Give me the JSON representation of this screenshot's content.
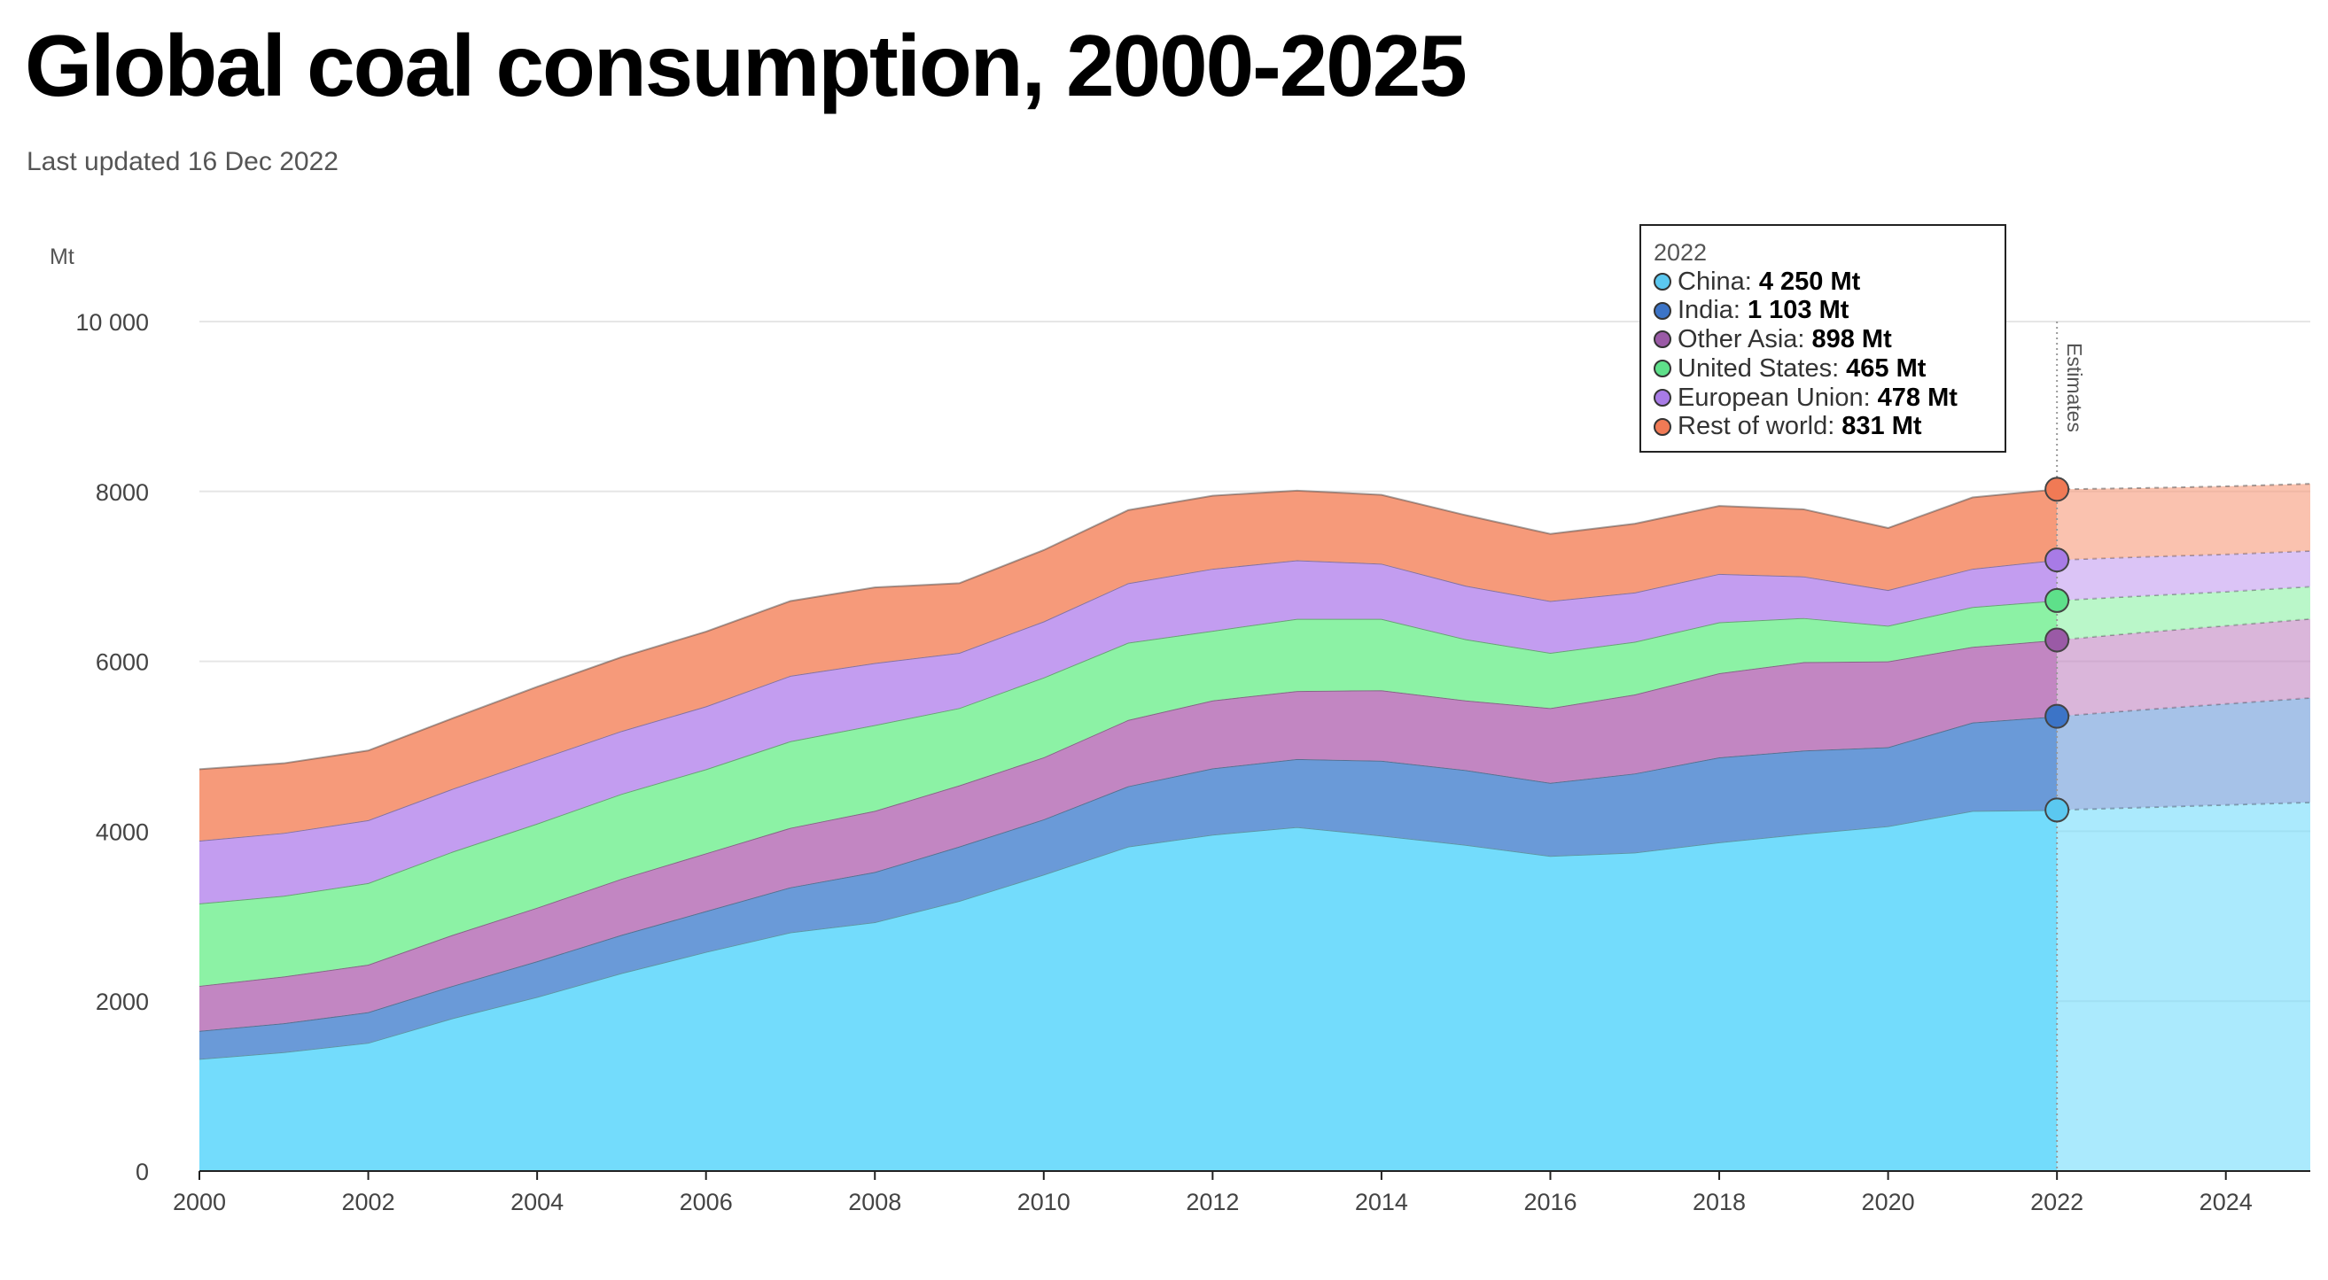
{
  "header": {
    "title": "Global coal consumption, 2000-2025",
    "subtitle": "Last updated 16 Dec 2022"
  },
  "tooltip": {
    "year": "2022",
    "rows": [
      {
        "label": "China:",
        "value": "4 250 Mt",
        "color": "#5bc8f0"
      },
      {
        "label": "India:",
        "value": "1 103 Mt",
        "color": "#3c74c7"
      },
      {
        "label": "Other Asia:",
        "value": "898 Mt",
        "color": "#9a5aa6"
      },
      {
        "label": "United States:",
        "value": "465 Mt",
        "color": "#5ee08a"
      },
      {
        "label": "European Union:",
        "value": "478 Mt",
        "color": "#a87be6"
      },
      {
        "label": "Rest of world:",
        "value": "831 Mt",
        "color": "#f07a55"
      }
    ]
  },
  "chart_data": {
    "type": "area",
    "stacked": true,
    "unit_label": "Mt",
    "estimates_label": "Estimates",
    "estimates_from": 2022,
    "x": [
      2000,
      2001,
      2002,
      2003,
      2004,
      2005,
      2006,
      2007,
      2008,
      2009,
      2010,
      2011,
      2012,
      2013,
      2014,
      2015,
      2016,
      2017,
      2018,
      2019,
      2020,
      2021,
      2022,
      2023,
      2024,
      2025
    ],
    "xlim": [
      2000,
      2025
    ],
    "ylim": [
      0,
      10000
    ],
    "x_ticks": [
      2000,
      2002,
      2004,
      2006,
      2008,
      2010,
      2012,
      2014,
      2016,
      2018,
      2020,
      2022,
      2024
    ],
    "y_ticks": [
      0,
      2000,
      4000,
      6000,
      8000,
      10000
    ],
    "y_tick_labels": [
      "0",
      "2000",
      "4000",
      "6000",
      "8000",
      "10 000"
    ],
    "grid": true,
    "series": [
      {
        "name": "China",
        "color": "#73dcfc",
        "marker_color": "#5bc8f0",
        "values": [
          1320,
          1400,
          1510,
          1800,
          2050,
          2330,
          2580,
          2810,
          2930,
          3180,
          3490,
          3820,
          3960,
          4050,
          3950,
          3840,
          3710,
          3750,
          3870,
          3970,
          4060,
          4240,
          4250,
          4280,
          4310,
          4340
        ]
      },
      {
        "name": "India",
        "color": "#6a9ad8",
        "marker_color": "#3c74c7",
        "values": [
          330,
          340,
          360,
          380,
          420,
          450,
          480,
          530,
          590,
          640,
          650,
          710,
          780,
          800,
          880,
          880,
          860,
          930,
          1000,
          980,
          930,
          1040,
          1103,
          1150,
          1190,
          1230
        ]
      },
      {
        "name": "Other Asia",
        "color": "#c286c2",
        "marker_color": "#9a5aa6",
        "values": [
          530,
          550,
          560,
          600,
          630,
          660,
          680,
          700,
          720,
          720,
          730,
          780,
          800,
          800,
          830,
          820,
          880,
          930,
          990,
          1040,
          1010,
          890,
          898,
          910,
          920,
          930
        ]
      },
      {
        "name": "United States",
        "color": "#8cf2a5",
        "marker_color": "#5ee08a",
        "values": [
          970,
          950,
          960,
          980,
          990,
          1000,
          990,
          1020,
          1010,
          910,
          940,
          910,
          820,
          850,
          840,
          720,
          650,
          620,
          600,
          520,
          420,
          470,
          465,
          430,
          400,
          380
        ]
      },
      {
        "name": "European Union",
        "color": "#c39df0",
        "marker_color": "#a87be6",
        "values": [
          740,
          740,
          740,
          740,
          750,
          740,
          740,
          770,
          730,
          650,
          660,
          700,
          730,
          690,
          650,
          630,
          610,
          580,
          570,
          490,
          420,
          450,
          478,
          460,
          440,
          420
        ]
      },
      {
        "name": "Rest of world",
        "color": "#f69a7a",
        "marker_color": "#f07a55",
        "values": [
          840,
          820,
          820,
          830,
          860,
          870,
          880,
          880,
          890,
          820,
          840,
          860,
          860,
          820,
          810,
          830,
          790,
          810,
          800,
          790,
          730,
          840,
          831,
          810,
          800,
          790
        ]
      }
    ]
  }
}
